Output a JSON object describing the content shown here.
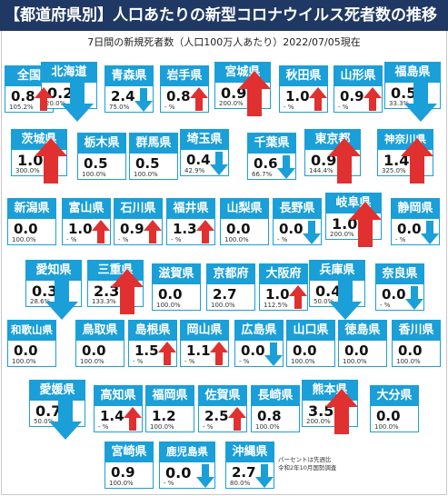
{
  "title": "【都道府県別】人口あたりの新型コロナウイルス死者数の推移",
  "subtitle": "7日間の新規死者数（人口100万人あたり）2022/07/05現在",
  "note": [
    "パーセントは先週比",
    "令和2年10月国勢調査"
  ],
  "colors": {
    "tile": "#1a9fd8",
    "up": "#e03030",
    "down": "#1a9fd8",
    "title_bg": "#1f3864"
  },
  "tiles": [
    {
      "id": "zenkoku",
      "name": "全国",
      "value": "0.8",
      "pct": "105.2%",
      "trend": "up",
      "arrow": "up"
    },
    {
      "id": "hokkaido",
      "name": "北海道",
      "value": "0.2",
      "pct": "20.0%",
      "trend": "down",
      "arrow": "dbig"
    },
    {
      "id": "aomori",
      "name": "青森県",
      "value": "2.4",
      "pct": "75.0%",
      "trend": "down",
      "arrow": "down"
    },
    {
      "id": "iwate",
      "name": "岩手県",
      "value": "0.8",
      "pct": "- %",
      "trend": "up",
      "arrow": "up"
    },
    {
      "id": "miyagi",
      "name": "宮城県",
      "value": "0.9",
      "pct": "200.0%",
      "trend": "up",
      "arrow": "ubig"
    },
    {
      "id": "akita",
      "name": "秋田県",
      "value": "1.0",
      "pct": "- %",
      "trend": "up",
      "arrow": "up"
    },
    {
      "id": "yamagata",
      "name": "山形県",
      "value": "0.9",
      "pct": "- %",
      "trend": "up",
      "arrow": "up"
    },
    {
      "id": "fukushima",
      "name": "福島県",
      "value": "0.5",
      "pct": "33.3%",
      "trend": "down",
      "arrow": "dbig"
    },
    {
      "id": "ibaraki",
      "name": "茨城県",
      "value": "1.0",
      "pct": "300.0%",
      "trend": "up",
      "arrow": "ubig"
    },
    {
      "id": "tochigi",
      "name": "栃木県",
      "value": "0.5",
      "pct": "100.0%",
      "trend": "flat",
      "arrow": "none"
    },
    {
      "id": "gunma",
      "name": "群馬県",
      "value": "0.5",
      "pct": "100.0%",
      "trend": "flat",
      "arrow": "none"
    },
    {
      "id": "saitama",
      "name": "埼玉県",
      "value": "0.4",
      "pct": "42.9%",
      "trend": "down",
      "arrow": "down"
    },
    {
      "id": "chiba",
      "name": "千葉県",
      "value": "0.6",
      "pct": "66.7%",
      "trend": "down",
      "arrow": "down"
    },
    {
      "id": "tokyo",
      "name": "東京都",
      "value": "0.9",
      "pct": "144.4%",
      "trend": "up",
      "arrow": "ubig"
    },
    {
      "id": "kanagawa",
      "name": "神奈川県",
      "value": "1.4",
      "pct": "325.0%",
      "trend": "up",
      "arrow": "ubig"
    },
    {
      "id": "niigata",
      "name": "新潟県",
      "value": "0.0",
      "pct": "100.0%",
      "trend": "flat",
      "arrow": "none"
    },
    {
      "id": "toyama",
      "name": "富山県",
      "value": "1.0",
      "pct": "- %",
      "trend": "up",
      "arrow": "up"
    },
    {
      "id": "ishikawa",
      "name": "石川県",
      "value": "0.9",
      "pct": "- %",
      "trend": "up",
      "arrow": "up"
    },
    {
      "id": "fukui",
      "name": "福井県",
      "value": "1.3",
      "pct": "- %",
      "trend": "up",
      "arrow": "up"
    },
    {
      "id": "yamanashi",
      "name": "山梨県",
      "value": "0.0",
      "pct": "100.0%",
      "trend": "flat",
      "arrow": "none"
    },
    {
      "id": "nagano",
      "name": "長野県",
      "value": "0.0",
      "pct": "- %",
      "trend": "down",
      "arrow": "down"
    },
    {
      "id": "gifu",
      "name": "岐阜県",
      "value": "1.0",
      "pct": "200.0%",
      "trend": "up",
      "arrow": "ubig"
    },
    {
      "id": "shizuoka",
      "name": "静岡県",
      "value": "0.0",
      "pct": "- %",
      "trend": "down",
      "arrow": "down"
    },
    {
      "id": "aichi",
      "name": "愛知県",
      "value": "0.3",
      "pct": "28.6%",
      "trend": "down",
      "arrow": "dbig"
    },
    {
      "id": "mie",
      "name": "三重県",
      "value": "2.3",
      "pct": "133.3%",
      "trend": "up",
      "arrow": "ubig"
    },
    {
      "id": "shiga",
      "name": "滋賀県",
      "value": "0.0",
      "pct": "100.0%",
      "trend": "flat",
      "arrow": "none"
    },
    {
      "id": "kyoto",
      "name": "京都府",
      "value": "2.7",
      "pct": "100.0%",
      "trend": "flat",
      "arrow": "none"
    },
    {
      "id": "osaka",
      "name": "大阪府",
      "value": "1.0",
      "pct": "112.5%",
      "trend": "up",
      "arrow": "up"
    },
    {
      "id": "hyogo",
      "name": "兵庫県",
      "value": "0.4",
      "pct": "50.0%",
      "trend": "down",
      "arrow": "dbig"
    },
    {
      "id": "nara",
      "name": "奈良県",
      "value": "0.0",
      "pct": "- %",
      "trend": "down",
      "arrow": "down"
    },
    {
      "id": "wakayama",
      "name": "和歌山県",
      "value": "0.0",
      "pct": "100.0%",
      "trend": "flat",
      "arrow": "none"
    },
    {
      "id": "tottori",
      "name": "鳥取県",
      "value": "0.0",
      "pct": "100.0%",
      "trend": "flat",
      "arrow": "none"
    },
    {
      "id": "shimane",
      "name": "島根県",
      "value": "1.5",
      "pct": "- %",
      "trend": "up",
      "arrow": "up"
    },
    {
      "id": "okayama",
      "name": "岡山県",
      "value": "1.1",
      "pct": "- %",
      "trend": "up",
      "arrow": "up"
    },
    {
      "id": "hiroshima",
      "name": "広島県",
      "value": "0.0",
      "pct": "- %",
      "trend": "down",
      "arrow": "down"
    },
    {
      "id": "yamaguchi",
      "name": "山口県",
      "value": "0.0",
      "pct": "100.0%",
      "trend": "flat",
      "arrow": "none"
    },
    {
      "id": "tokushima",
      "name": "徳島県",
      "value": "0.0",
      "pct": "100.0%",
      "trend": "flat",
      "arrow": "none"
    },
    {
      "id": "kagawa",
      "name": "香川県",
      "value": "0.0",
      "pct": "100.0%",
      "trend": "flat",
      "arrow": "none"
    },
    {
      "id": "ehime",
      "name": "愛媛県",
      "value": "0.7",
      "pct": "50.0%",
      "trend": "down",
      "arrow": "dbig"
    },
    {
      "id": "kochi",
      "name": "高知県",
      "value": "1.4",
      "pct": "- %",
      "trend": "up",
      "arrow": "up"
    },
    {
      "id": "fukuoka",
      "name": "福岡県",
      "value": "1.2",
      "pct": "100.0%",
      "trend": "flat",
      "arrow": "none"
    },
    {
      "id": "saga",
      "name": "佐賀県",
      "value": "2.5",
      "pct": "- %",
      "trend": "up",
      "arrow": "up"
    },
    {
      "id": "nagasaki",
      "name": "長崎県",
      "value": "0.8",
      "pct": "100.0%",
      "trend": "flat",
      "arrow": "none"
    },
    {
      "id": "kumamoto",
      "name": "熊本県",
      "value": "3.5",
      "pct": "200.0%",
      "trend": "up",
      "arrow": "ubig"
    },
    {
      "id": "oita",
      "name": "大分県",
      "value": "0.0",
      "pct": "100.0%",
      "trend": "flat",
      "arrow": "none"
    },
    {
      "id": "miyazaki",
      "name": "宮崎県",
      "value": "0.9",
      "pct": "100.0%",
      "trend": "flat",
      "arrow": "none"
    },
    {
      "id": "kagoshima",
      "name": "鹿児島県",
      "value": "0.0",
      "pct": "- %",
      "trend": "down",
      "arrow": "down"
    },
    {
      "id": "okinawa",
      "name": "沖縄県",
      "value": "2.7",
      "pct": "80.0%",
      "trend": "down",
      "arrow": "down"
    }
  ]
}
